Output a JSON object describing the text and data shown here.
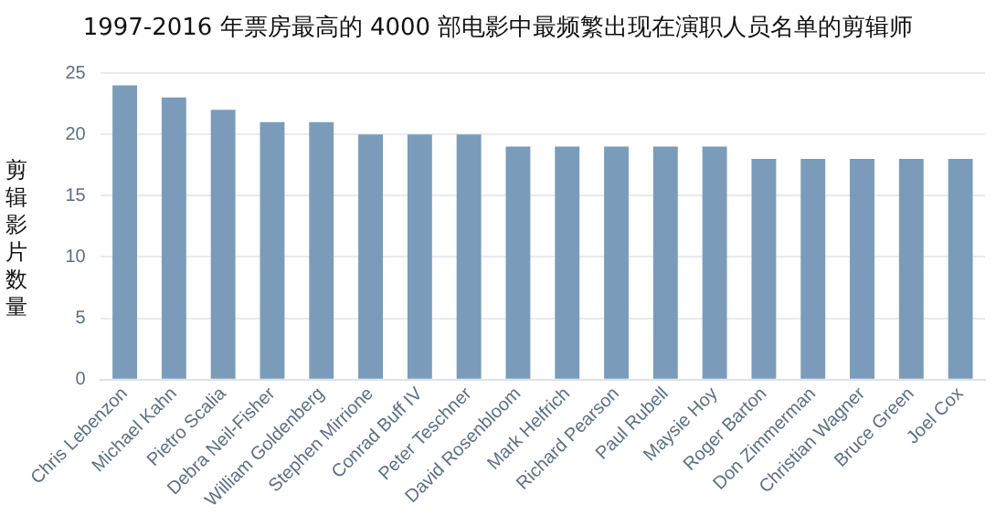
{
  "chart_data": {
    "type": "bar",
    "title": "1997-2016 年票房最高的 4000 部电影中最频繁出现在演职人员名单的剪辑师",
    "ylabel": "剪辑影片数量",
    "categories": [
      "Chris Lebenzon",
      "Michael Kahn",
      "Pietro Scalia",
      "Debra Neil-Fisher",
      "William Goldenberg",
      "Stephen Mirrione",
      "Conrad Buff IV",
      "Peter Teschner",
      "David Rosenbloom",
      "Mark Helfrich",
      "Richard Pearson",
      "Paul Rubell",
      "Maysie Hoy",
      "Roger Barton",
      "Don Zimmerman",
      "Christian Wagner",
      "Bruce Green",
      "Joel Cox"
    ],
    "values": [
      24,
      23,
      22,
      21,
      21,
      20,
      20,
      20,
      19,
      19,
      19,
      19,
      19,
      18,
      18,
      18,
      18,
      18
    ],
    "color": "#7a9cba",
    "ylim": [
      0,
      25
    ],
    "yticks": [
      0,
      5,
      10,
      15,
      20,
      25
    ],
    "grid": "y",
    "legend": false
  }
}
